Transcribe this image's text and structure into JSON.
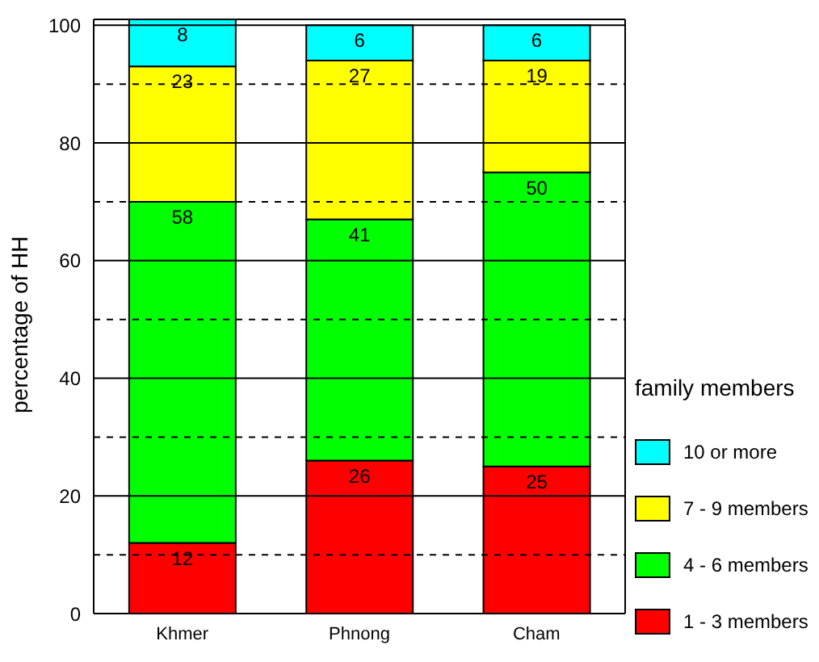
{
  "chart_data": {
    "type": "bar",
    "stacked": true,
    "ylabel": "percentage of HH",
    "legend_title": "family members",
    "legend": "right",
    "categories": [
      "Khmer",
      "Phnong",
      "Cham"
    ],
    "series": [
      {
        "name": "1 - 3 members",
        "color": "#ff0000",
        "values": [
          12,
          26,
          25
        ]
      },
      {
        "name": "4 - 6 members",
        "color": "#00ff00",
        "values": [
          58,
          41,
          50
        ]
      },
      {
        "name": "7 - 9 members",
        "color": "#ffff00",
        "values": [
          23,
          27,
          19
        ]
      },
      {
        "name": "10 or more",
        "color": "#00ffff",
        "values": [
          8,
          6,
          6
        ]
      }
    ],
    "ylim": [
      0,
      101
    ],
    "yticks": [
      0,
      {
        "value": 10,
        "label": null
      },
      20,
      {
        "value": 30,
        "label": null
      },
      40,
      {
        "value": 50,
        "label": null
      },
      60,
      {
        "value": 70,
        "label": null
      },
      80,
      {
        "value": 90,
        "label": null
      },
      100
    ],
    "grid": "y",
    "data_labels": true
  }
}
